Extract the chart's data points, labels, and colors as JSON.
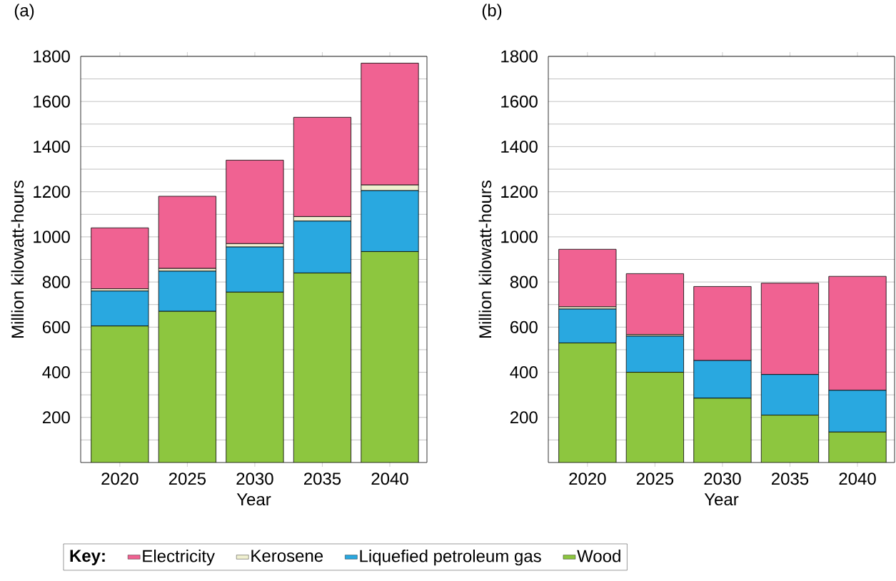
{
  "chart_data": [
    {
      "type": "bar",
      "title": "(a)",
      "xlabel": "Year",
      "ylabel": "Million kilowatt-hours",
      "legend_title": "Key:",
      "legend": "bottom",
      "stacked": true,
      "grid": "y",
      "categories": [
        "2020",
        "2025",
        "2030",
        "2035",
        "2040"
      ],
      "ylim": [
        0,
        1800
      ],
      "yticks": [
        {
          "value": 100,
          "label": null
        },
        200,
        {
          "value": 300,
          "label": null
        },
        400,
        {
          "value": 500,
          "label": null
        },
        600,
        {
          "value": 700,
          "label": null
        },
        800,
        {
          "value": 900,
          "label": null
        },
        1000,
        {
          "value": 1100,
          "label": null
        },
        1200,
        {
          "value": 1300,
          "label": null
        },
        1400,
        {
          "value": 1500,
          "label": null
        },
        1600,
        {
          "value": 1700,
          "label": null
        },
        1800
      ],
      "series": [
        {
          "name": "Wood",
          "color": "#8dc63f",
          "values": [
            605,
            670,
            755,
            840,
            935
          ]
        },
        {
          "name": "Liquefied petroleum gas",
          "color": "#29a8e0",
          "values": [
            155,
            178,
            200,
            230,
            270
          ]
        },
        {
          "name": "Kerosene",
          "color": "#f0f0d0",
          "values": [
            10,
            12,
            15,
            20,
            25
          ]
        },
        {
          "name": "Electricity",
          "color": "#f06292",
          "values": [
            270,
            320,
            370,
            440,
            540
          ]
        }
      ]
    },
    {
      "type": "bar",
      "title": "(b)",
      "xlabel": "Year",
      "ylabel": "Million kilowatt-hours",
      "stacked": true,
      "grid": "y",
      "categories": [
        "2020",
        "2025",
        "2030",
        "2035",
        "2040"
      ],
      "ylim": [
        0,
        1800
      ],
      "yticks": [
        {
          "value": 100,
          "label": null
        },
        200,
        {
          "value": 300,
          "label": null
        },
        400,
        {
          "value": 500,
          "label": null
        },
        600,
        {
          "value": 700,
          "label": null
        },
        800,
        {
          "value": 900,
          "label": null
        },
        1000,
        {
          "value": 1100,
          "label": null
        },
        1200,
        {
          "value": 1300,
          "label": null
        },
        1400,
        {
          "value": 1500,
          "label": null
        },
        1600,
        {
          "value": 1700,
          "label": null
        },
        1800
      ],
      "series": [
        {
          "color": "#8dc63f",
          "values": [
            530,
            400,
            285,
            210,
            135
          ]
        },
        {
          "color": "#29a8e0",
          "values": [
            150,
            160,
            167,
            180,
            185
          ]
        },
        {
          "color": "#f0f0d0",
          "values": [
            10,
            7,
            0,
            0,
            0
          ]
        },
        {
          "color": "#f06292",
          "values": [
            255,
            270,
            328,
            405,
            505
          ]
        }
      ]
    }
  ]
}
